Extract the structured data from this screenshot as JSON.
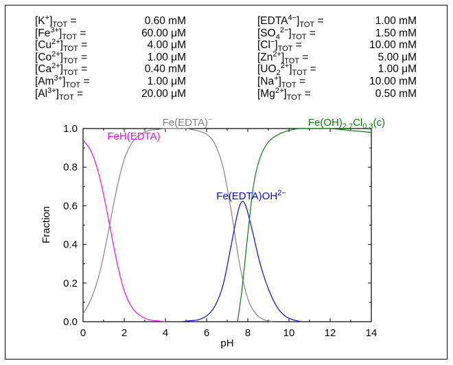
{
  "concentrations_left": [
    {
      "species": "K",
      "charge": "+",
      "value": "0.60",
      "unit": "mM"
    },
    {
      "species": "Fe",
      "charge": "3+",
      "value": "60.00",
      "unit": "μM"
    },
    {
      "species": "Cu",
      "charge": "2+",
      "value": "4.00",
      "unit": "μM"
    },
    {
      "species": "Co",
      "charge": "2+",
      "value": "1.00",
      "unit": "μM"
    },
    {
      "species": "Ca",
      "charge": "2+",
      "value": "0.40",
      "unit": "mM"
    },
    {
      "species": "Am",
      "charge": "3+",
      "value": "1.00",
      "unit": "μM"
    },
    {
      "species": "Al",
      "charge": "3+",
      "value": "20.00",
      "unit": "μM"
    }
  ],
  "concentrations_right": [
    {
      "species": "EDTA",
      "charge": "4−",
      "value": "1.00",
      "unit": "mM"
    },
    {
      "species": "SO",
      "sub": "4",
      "charge": "2−",
      "value": "1.50",
      "unit": "mM"
    },
    {
      "species": "Cl",
      "charge": "−",
      "value": "10.00",
      "unit": "mM"
    },
    {
      "species": "Zn",
      "charge": "2+",
      "value": "5.00",
      "unit": "μM"
    },
    {
      "species": "UO",
      "sub": "2",
      "charge": "2+",
      "value": "1.00",
      "unit": "μM"
    },
    {
      "species": "Na",
      "charge": "+",
      "value": "10.00",
      "unit": "mM"
    },
    {
      "species": "Mg",
      "charge": "2+",
      "value": "0.50",
      "unit": "mM"
    }
  ],
  "tot_label": "TOT",
  "chart_data": {
    "type": "line",
    "xlabel": "pH",
    "ylabel": "Fraction",
    "xlim": [
      0,
      14
    ],
    "ylim": [
      0,
      1
    ],
    "xticks": [
      "0",
      "2",
      "4",
      "6",
      "8",
      "10",
      "12",
      "14"
    ],
    "yticks": [
      "0.0",
      "0.2",
      "0.4",
      "0.6",
      "0.8",
      "1.0"
    ],
    "grid": false,
    "series": [
      {
        "name": "FeH(EDTA)",
        "color": "#ff00ff",
        "x": [
          0,
          0.4,
          0.8,
          1.2,
          1.6,
          2.0,
          2.4,
          2.8,
          3.2,
          3.6,
          4.0
        ],
        "y": [
          0.94,
          0.88,
          0.75,
          0.55,
          0.33,
          0.16,
          0.07,
          0.03,
          0.01,
          0.004,
          0.0
        ]
      },
      {
        "name": "Fe(EDTA)⁻",
        "color": "#808080",
        "x": [
          0,
          0.4,
          0.8,
          1.2,
          1.6,
          2.0,
          2.4,
          2.8,
          3.2,
          3.6,
          4.0,
          4.5,
          5.0,
          5.5,
          6.0,
          6.4,
          6.8,
          7.2,
          7.6,
          8.0,
          8.4,
          8.8,
          9.2
        ],
        "y": [
          0.04,
          0.12,
          0.25,
          0.45,
          0.67,
          0.84,
          0.93,
          0.97,
          0.99,
          0.995,
          1.0,
          1.0,
          1.0,
          0.99,
          0.97,
          0.92,
          0.8,
          0.57,
          0.3,
          0.12,
          0.04,
          0.01,
          0.0
        ]
      },
      {
        "name": "Fe(EDTA)OH²⁻",
        "color": "#0000ff",
        "x": [
          4.8,
          5.2,
          5.6,
          6.0,
          6.4,
          6.8,
          7.2,
          7.5,
          7.7,
          7.9,
          8.2,
          8.6,
          9.0,
          9.4,
          9.8,
          10.2,
          10.6
        ],
        "y": [
          0.0,
          0.005,
          0.01,
          0.03,
          0.08,
          0.19,
          0.4,
          0.56,
          0.62,
          0.6,
          0.48,
          0.3,
          0.17,
          0.08,
          0.03,
          0.01,
          0.0
        ]
      },
      {
        "name": "Fe(OH)₂.₇Cl₀.₃(c)",
        "color": "#008000",
        "x": [
          7.5,
          7.7,
          7.9,
          8.1,
          8.3,
          8.6,
          9.0,
          9.5,
          10.0,
          10.5,
          11.0,
          12.0,
          13.0,
          14.0
        ],
        "y": [
          0.0,
          0.15,
          0.35,
          0.55,
          0.72,
          0.85,
          0.93,
          0.97,
          0.99,
          1.0,
          1.0,
          1.0,
          0.99,
          0.98
        ]
      }
    ],
    "labels": [
      {
        "series": 0,
        "text": "FeH(EDTA)",
        "color": "#ff00ff"
      },
      {
        "series": 1,
        "text": "Fe(EDTA)",
        "sup": "−",
        "color": "#808080"
      },
      {
        "series": 2,
        "text": "Fe(EDTA)OH",
        "sup": "2−",
        "color": "#0000ff"
      },
      {
        "series": 3,
        "text": "Fe(OH)",
        "sub1": "2.7",
        "mid": "Cl",
        "sub2": "0.3",
        "tail": "(c)",
        "color": "#008000"
      }
    ]
  }
}
